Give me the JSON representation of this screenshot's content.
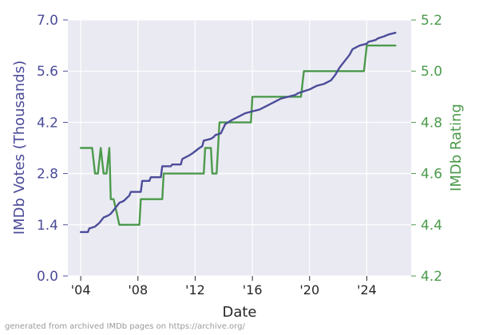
{
  "footer_note": "generated from archived IMDb pages on https://archive.org/",
  "colors": {
    "plot_bg": "#eaeaf2",
    "grid": "#ffffff",
    "votes_line": "#4c4c9a",
    "rating_line": "#4c9a4c",
    "left_axis_text": "#4c4c9a",
    "right_axis_text": "#4c9a4c",
    "bottom_axis_text": "#262626"
  },
  "chart_data": {
    "type": "line",
    "xlabel": "Date",
    "x_ticks": [
      "'04",
      "'08",
      "'12",
      "'16",
      "'20",
      "'24"
    ],
    "x_tick_values": [
      2004,
      2008,
      2012,
      2016,
      2020,
      2024
    ],
    "xlim": [
      2003.1,
      2027.1
    ],
    "grid": true,
    "left_axis": {
      "label": "IMDb Votes (Thousands)",
      "ylim": [
        0.0,
        7.0
      ],
      "ticks": [
        "0.0",
        "1.4",
        "2.8",
        "4.2",
        "5.6",
        "7.0"
      ],
      "tick_values": [
        0.0,
        1.4,
        2.8,
        4.2,
        5.6,
        7.0
      ]
    },
    "right_axis": {
      "label": "IMDb Rating",
      "ylim": [
        4.2,
        5.2
      ],
      "ticks": [
        "4.2",
        "4.4",
        "4.6",
        "4.8",
        "5.0",
        "5.2"
      ],
      "tick_values": [
        4.2,
        4.4,
        4.6,
        4.8,
        5.0,
        5.2
      ]
    },
    "series": [
      {
        "name": "IMDb Votes (Thousands)",
        "axis": "left",
        "x": [
          2004.0,
          2004.5,
          2004.6,
          2005.0,
          2005.3,
          2005.6,
          2005.9,
          2006.1,
          2006.3,
          2006.5,
          2006.7,
          2007.0,
          2007.4,
          2007.5,
          2008.2,
          2008.3,
          2008.8,
          2008.9,
          2009.6,
          2009.7,
          2010.3,
          2010.4,
          2011.0,
          2011.1,
          2011.6,
          2011.8,
          2012.3,
          2012.5,
          2012.6,
          2013.1,
          2013.3,
          2013.4,
          2013.8,
          2014.1,
          2014.5,
          2015.0,
          2015.5,
          2016.0,
          2016.5,
          2017.0,
          2017.5,
          2018.0,
          2018.5,
          2019.0,
          2019.2,
          2019.6,
          2020.0,
          2020.5,
          2021.0,
          2021.5,
          2021.8,
          2022.1,
          2022.5,
          2022.8,
          2023.0,
          2023.5,
          2024.0,
          2024.1,
          2024.6,
          2024.8,
          2025.2,
          2025.5,
          2026.0
        ],
        "values": [
          1.2,
          1.2,
          1.3,
          1.35,
          1.45,
          1.6,
          1.65,
          1.7,
          1.8,
          1.9,
          2.0,
          2.05,
          2.2,
          2.3,
          2.3,
          2.6,
          2.6,
          2.7,
          2.7,
          3.0,
          3.0,
          3.05,
          3.05,
          3.2,
          3.3,
          3.35,
          3.5,
          3.55,
          3.7,
          3.75,
          3.8,
          3.85,
          3.9,
          4.15,
          4.25,
          4.35,
          4.45,
          4.5,
          4.55,
          4.65,
          4.75,
          4.85,
          4.9,
          4.95,
          5.0,
          5.05,
          5.1,
          5.2,
          5.25,
          5.35,
          5.5,
          5.7,
          5.9,
          6.05,
          6.2,
          6.3,
          6.35,
          6.4,
          6.45,
          6.5,
          6.55,
          6.6,
          6.65
        ]
      },
      {
        "name": "IMDb Rating",
        "axis": "right",
        "x": [
          2004.0,
          2004.8,
          2005.0,
          2005.2,
          2005.4,
          2005.6,
          2005.8,
          2006.0,
          2006.1,
          2006.3,
          2006.5,
          2006.7,
          2008.1,
          2008.2,
          2009.7,
          2009.8,
          2012.6,
          2012.7,
          2013.1,
          2013.2,
          2013.5,
          2013.7,
          2013.8,
          2015.9,
          2016.0,
          2019.4,
          2019.6,
          2023.8,
          2024.0,
          2026.0
        ],
        "values": [
          4.7,
          4.7,
          4.6,
          4.6,
          4.7,
          4.6,
          4.6,
          4.7,
          4.5,
          4.5,
          4.45,
          4.4,
          4.4,
          4.5,
          4.5,
          4.6,
          4.6,
          4.7,
          4.7,
          4.6,
          4.6,
          4.8,
          4.8,
          4.8,
          4.9,
          4.9,
          5.0,
          5.0,
          5.1,
          5.1
        ]
      }
    ]
  }
}
